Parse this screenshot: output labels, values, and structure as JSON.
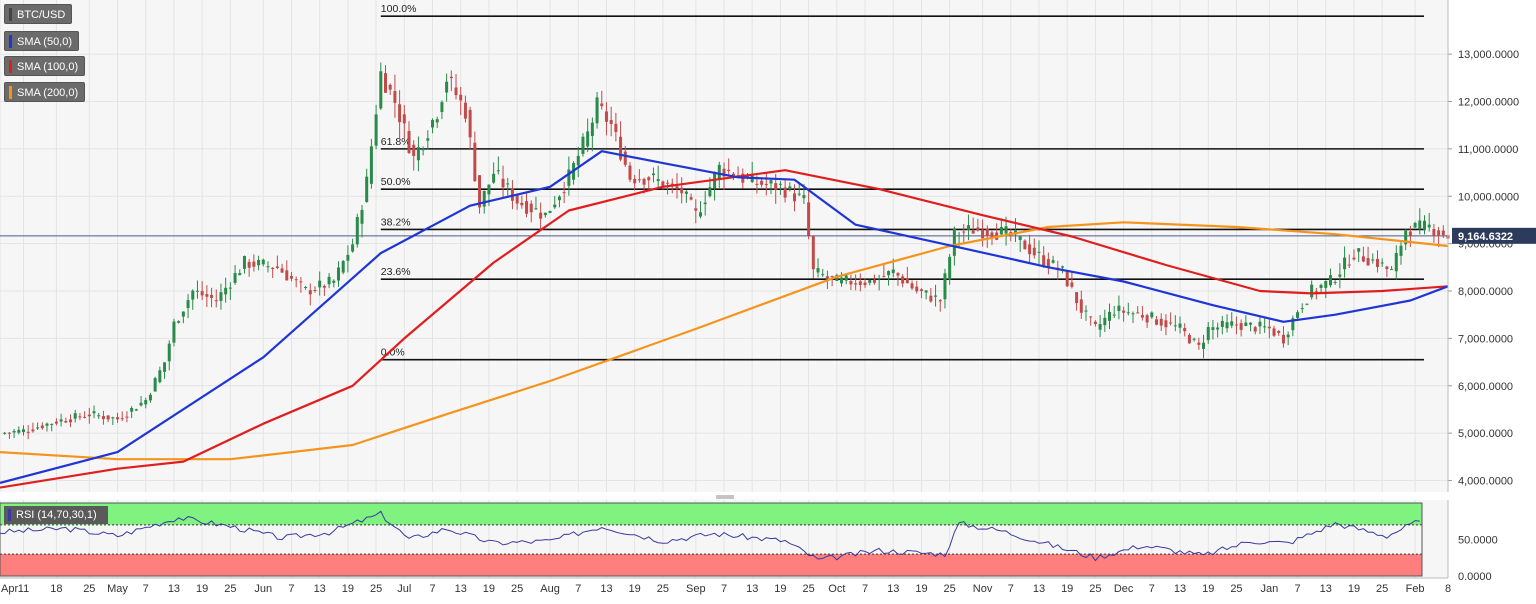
{
  "chart_data": {
    "type": "candlestick",
    "symbol": "BTC/USD",
    "indicators": [
      {
        "label": "SMA (50,0)",
        "color": "#1f35d6"
      },
      {
        "label": "SMA (100,0)",
        "color": "#e01e1e"
      },
      {
        "label": "SMA (200,0)",
        "color": "#f5941d"
      }
    ],
    "current_price": "9,164.6322",
    "current_price_value": 9164.6322,
    "y_ticks": [
      {
        "value": 4000,
        "label": "4,000.0000"
      },
      {
        "value": 5000,
        "label": "5,000.0000"
      },
      {
        "value": 6000,
        "label": "6,000.0000"
      },
      {
        "value": 7000,
        "label": "7,000.0000"
      },
      {
        "value": 8000,
        "label": "8,000.0000"
      },
      {
        "value": 9000,
        "label": "9,000.0000"
      },
      {
        "value": 10000,
        "label": "10,000.0000"
      },
      {
        "value": 11000,
        "label": "11,000.0000"
      },
      {
        "value": 12000,
        "label": "12,000.0000"
      },
      {
        "value": 13000,
        "label": "13,000.0000"
      }
    ],
    "ylim": [
      3800,
      14100
    ],
    "x_range": [
      "2019-04-06",
      "2020-02-08"
    ],
    "x_ticks": [
      {
        "date": "2019-04-06",
        "label": "Apr"
      },
      {
        "date": "2019-04-11",
        "label": "11"
      },
      {
        "date": "2019-04-18",
        "label": "18"
      },
      {
        "date": "2019-04-25",
        "label": "25"
      },
      {
        "date": "2019-05-01",
        "label": "May"
      },
      {
        "date": "2019-05-07",
        "label": "7"
      },
      {
        "date": "2019-05-13",
        "label": "13"
      },
      {
        "date": "2019-05-19",
        "label": "19"
      },
      {
        "date": "2019-05-25",
        "label": "25"
      },
      {
        "date": "2019-06-01",
        "label": "Jun"
      },
      {
        "date": "2019-06-07",
        "label": "7"
      },
      {
        "date": "2019-06-13",
        "label": "13"
      },
      {
        "date": "2019-06-19",
        "label": "19"
      },
      {
        "date": "2019-06-25",
        "label": "25"
      },
      {
        "date": "2019-07-01",
        "label": "Jul"
      },
      {
        "date": "2019-07-07",
        "label": "7"
      },
      {
        "date": "2019-07-13",
        "label": "13"
      },
      {
        "date": "2019-07-19",
        "label": "19"
      },
      {
        "date": "2019-07-25",
        "label": "25"
      },
      {
        "date": "2019-08-01",
        "label": "Aug"
      },
      {
        "date": "2019-08-07",
        "label": "7"
      },
      {
        "date": "2019-08-13",
        "label": "13"
      },
      {
        "date": "2019-08-19",
        "label": "19"
      },
      {
        "date": "2019-08-25",
        "label": "25"
      },
      {
        "date": "2019-09-01",
        "label": "Sep"
      },
      {
        "date": "2019-09-07",
        "label": "7"
      },
      {
        "date": "2019-09-13",
        "label": "13"
      },
      {
        "date": "2019-09-19",
        "label": "19"
      },
      {
        "date": "2019-09-25",
        "label": "25"
      },
      {
        "date": "2019-10-01",
        "label": "Oct"
      },
      {
        "date": "2019-10-07",
        "label": "7"
      },
      {
        "date": "2019-10-13",
        "label": "13"
      },
      {
        "date": "2019-10-19",
        "label": "19"
      },
      {
        "date": "2019-10-25",
        "label": "25"
      },
      {
        "date": "2019-11-01",
        "label": "Nov"
      },
      {
        "date": "2019-11-07",
        "label": "7"
      },
      {
        "date": "2019-11-13",
        "label": "13"
      },
      {
        "date": "2019-11-19",
        "label": "19"
      },
      {
        "date": "2019-11-25",
        "label": "25"
      },
      {
        "date": "2019-12-01",
        "label": "Dec"
      },
      {
        "date": "2019-12-07",
        "label": "7"
      },
      {
        "date": "2019-12-13",
        "label": "13"
      },
      {
        "date": "2019-12-19",
        "label": "19"
      },
      {
        "date": "2019-12-25",
        "label": "25"
      },
      {
        "date": "2020-01-01",
        "label": "Jan"
      },
      {
        "date": "2020-01-07",
        "label": "7"
      },
      {
        "date": "2020-01-13",
        "label": "13"
      },
      {
        "date": "2020-01-19",
        "label": "19"
      },
      {
        "date": "2020-01-25",
        "label": "25"
      },
      {
        "date": "2020-02-01",
        "label": "Feb"
      },
      {
        "date": "2020-02-08",
        "label": "8"
      }
    ],
    "fibonacci": {
      "start_date": "2019-06-26",
      "levels": [
        {
          "label": "100.0%",
          "value": 13800
        },
        {
          "label": "61.8%",
          "value": 11000
        },
        {
          "label": "50.0%",
          "value": 10150
        },
        {
          "label": "38.2%",
          "value": 9300
        },
        {
          "label": "23.6%",
          "value": 8250
        },
        {
          "label": "0.0%",
          "value": 6550
        }
      ]
    },
    "price_path": [
      [
        "2019-04-06",
        5000
      ],
      [
        "2019-04-11",
        5050
      ],
      [
        "2019-04-18",
        5250
      ],
      [
        "2019-04-25",
        5400
      ],
      [
        "2019-05-01",
        5300
      ],
      [
        "2019-05-07",
        5700
      ],
      [
        "2019-05-11",
        6500
      ],
      [
        "2019-05-13",
        7300
      ],
      [
        "2019-05-17",
        8000
      ],
      [
        "2019-05-22",
        7800
      ],
      [
        "2019-05-28",
        8600
      ],
      [
        "2019-06-04",
        8500
      ],
      [
        "2019-06-10",
        8000
      ],
      [
        "2019-06-16",
        8200
      ],
      [
        "2019-06-20",
        9000
      ],
      [
        "2019-06-23",
        10300
      ],
      [
        "2019-06-26",
        12600
      ],
      [
        "2019-06-29",
        12000
      ],
      [
        "2019-07-03",
        10800
      ],
      [
        "2019-07-08",
        11800
      ],
      [
        "2019-07-10",
        12500
      ],
      [
        "2019-07-14",
        11800
      ],
      [
        "2019-07-17",
        9800
      ],
      [
        "2019-07-20",
        10500
      ],
      [
        "2019-07-25",
        9900
      ],
      [
        "2019-07-31",
        9600
      ],
      [
        "2019-08-05",
        10400
      ],
      [
        "2019-08-09",
        11300
      ],
      [
        "2019-08-11",
        11900
      ],
      [
        "2019-08-14",
        11500
      ],
      [
        "2019-08-18",
        10400
      ],
      [
        "2019-08-22",
        10400
      ],
      [
        "2019-08-29",
        10100
      ],
      [
        "2019-09-01",
        9600
      ],
      [
        "2019-09-06",
        10600
      ],
      [
        "2019-09-13",
        10300
      ],
      [
        "2019-09-19",
        10200
      ],
      [
        "2019-09-24",
        9900
      ],
      [
        "2019-09-26",
        8400
      ],
      [
        "2019-10-01",
        8200
      ],
      [
        "2019-10-08",
        8200
      ],
      [
        "2019-10-13",
        8400
      ],
      [
        "2019-10-18",
        8000
      ],
      [
        "2019-10-23",
        7800
      ],
      [
        "2019-10-26",
        9200
      ],
      [
        "2019-10-30",
        9300
      ],
      [
        "2019-11-07",
        9200
      ],
      [
        "2019-11-12",
        8800
      ],
      [
        "2019-11-18",
        8400
      ],
      [
        "2019-11-22",
        7600
      ],
      [
        "2019-11-25",
        7200
      ],
      [
        "2019-11-29",
        7600
      ],
      [
        "2019-12-05",
        7500
      ],
      [
        "2019-12-13",
        7200
      ],
      [
        "2019-12-17",
        6800
      ],
      [
        "2019-12-19",
        7200
      ],
      [
        "2019-12-25",
        7300
      ],
      [
        "2020-01-01",
        7200
      ],
      [
        "2020-01-04",
        7000
      ],
      [
        "2020-01-07",
        7600
      ],
      [
        "2020-01-10",
        8000
      ],
      [
        "2020-01-14",
        8200
      ],
      [
        "2020-01-19",
        8800
      ],
      [
        "2020-01-24",
        8600
      ],
      [
        "2020-01-27",
        8400
      ],
      [
        "2020-01-30",
        9300
      ],
      [
        "2020-02-04",
        9350
      ],
      [
        "2020-02-08",
        9160
      ]
    ],
    "sma_50": [
      [
        "2019-04-06",
        3950
      ],
      [
        "2019-05-01",
        4600
      ],
      [
        "2019-06-01",
        6600
      ],
      [
        "2019-06-26",
        8800
      ],
      [
        "2019-07-15",
        9800
      ],
      [
        "2019-08-01",
        10200
      ],
      [
        "2019-08-12",
        10950
      ],
      [
        "2019-08-25",
        10700
      ],
      [
        "2019-09-10",
        10400
      ],
      [
        "2019-09-22",
        10350
      ],
      [
        "2019-10-05",
        9400
      ],
      [
        "2019-10-28",
        8900
      ],
      [
        "2019-11-15",
        8500
      ],
      [
        "2019-12-01",
        8200
      ],
      [
        "2019-12-20",
        7700
      ],
      [
        "2020-01-04",
        7350
      ],
      [
        "2020-01-15",
        7500
      ],
      [
        "2020-01-31",
        7800
      ],
      [
        "2020-02-08",
        8100
      ]
    ],
    "sma_100": [
      [
        "2019-04-06",
        3850
      ],
      [
        "2019-05-01",
        4250
      ],
      [
        "2019-05-15",
        4400
      ],
      [
        "2019-06-01",
        5200
      ],
      [
        "2019-06-20",
        6000
      ],
      [
        "2019-07-01",
        7000
      ],
      [
        "2019-07-20",
        8600
      ],
      [
        "2019-08-05",
        9700
      ],
      [
        "2019-08-25",
        10200
      ],
      [
        "2019-09-20",
        10550
      ],
      [
        "2019-10-10",
        10150
      ],
      [
        "2019-11-01",
        9600
      ],
      [
        "2019-11-20",
        9150
      ],
      [
        "2019-12-10",
        8550
      ],
      [
        "2019-12-30",
        8000
      ],
      [
        "2020-01-10",
        7950
      ],
      [
        "2020-01-25",
        8000
      ],
      [
        "2020-02-08",
        8100
      ]
    ],
    "sma_200": [
      [
        "2019-04-06",
        4600
      ],
      [
        "2019-05-01",
        4450
      ],
      [
        "2019-05-25",
        4450
      ],
      [
        "2019-06-20",
        4750
      ],
      [
        "2019-07-10",
        5400
      ],
      [
        "2019-08-01",
        6100
      ],
      [
        "2019-09-01",
        7200
      ],
      [
        "2019-10-01",
        8300
      ],
      [
        "2019-10-25",
        8950
      ],
      [
        "2019-11-15",
        9350
      ],
      [
        "2019-12-01",
        9450
      ],
      [
        "2019-12-25",
        9350
      ],
      [
        "2020-01-15",
        9200
      ],
      [
        "2020-02-08",
        8950
      ]
    ],
    "rsi": {
      "label": "RSI (14,70,30,1)",
      "overbought": 70,
      "oversold": 30,
      "ticks": [
        {
          "value": 0,
          "label": "0.0000"
        },
        {
          "value": 50,
          "label": "50.0000"
        }
      ],
      "values": [
        [
          "2019-04-06",
          60
        ],
        [
          "2019-04-20",
          65
        ],
        [
          "2019-05-01",
          55
        ],
        [
          "2019-05-14",
          80
        ],
        [
          "2019-05-25",
          68
        ],
        [
          "2019-06-05",
          52
        ],
        [
          "2019-06-15",
          60
        ],
        [
          "2019-06-26",
          85
        ],
        [
          "2019-07-02",
          50
        ],
        [
          "2019-07-10",
          65
        ],
        [
          "2019-07-20",
          45
        ],
        [
          "2019-08-01",
          48
        ],
        [
          "2019-08-12",
          68
        ],
        [
          "2019-08-25",
          48
        ],
        [
          "2019-09-05",
          58
        ],
        [
          "2019-09-20",
          48
        ],
        [
          "2019-09-27",
          22
        ],
        [
          "2019-10-10",
          35
        ],
        [
          "2019-10-24",
          30
        ],
        [
          "2019-10-27",
          72
        ],
        [
          "2019-11-05",
          62
        ],
        [
          "2019-11-18",
          38
        ],
        [
          "2019-11-25",
          25
        ],
        [
          "2019-12-05",
          42
        ],
        [
          "2019-12-18",
          28
        ],
        [
          "2019-12-28",
          48
        ],
        [
          "2020-01-05",
          45
        ],
        [
          "2020-01-15",
          72
        ],
        [
          "2020-01-26",
          55
        ],
        [
          "2020-02-01",
          73
        ],
        [
          "2020-02-08",
          62
        ]
      ]
    }
  }
}
